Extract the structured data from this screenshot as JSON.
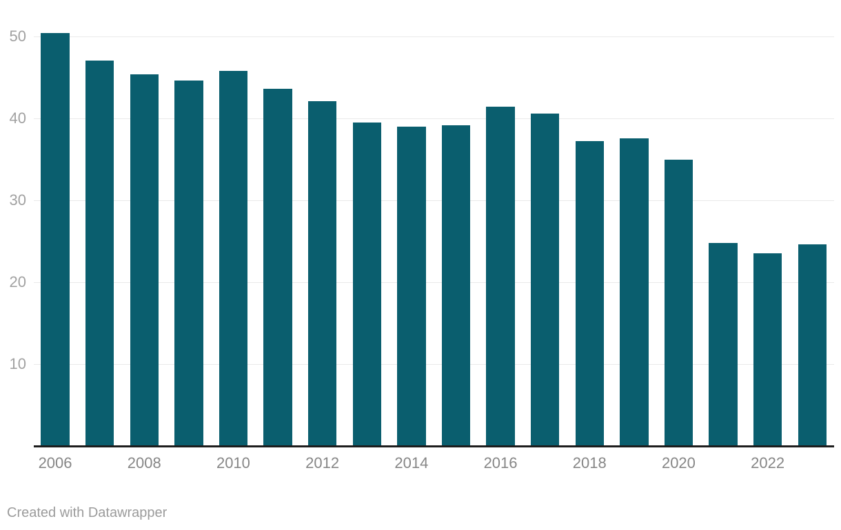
{
  "chart_data": {
    "type": "bar",
    "title": "",
    "xlabel": "",
    "ylabel": "",
    "categories": [
      "2006",
      "2007",
      "2008",
      "2009",
      "2010",
      "2011",
      "2012",
      "2013",
      "2014",
      "2015",
      "2016",
      "2017",
      "2018",
      "2019",
      "2020",
      "2021",
      "2022",
      "2023"
    ],
    "values": [
      50.4,
      47.1,
      45.4,
      44.6,
      45.8,
      43.6,
      42.1,
      39.5,
      39.0,
      39.2,
      41.4,
      40.6,
      37.2,
      37.6,
      35.0,
      24.8,
      23.5,
      24.6
    ],
    "x_tick_labels_shown": [
      "2006",
      "2008",
      "2010",
      "2012",
      "2014",
      "2016",
      "2018",
      "2020",
      "2022"
    ],
    "y_ticks": [
      10,
      20,
      30,
      40,
      50
    ],
    "ylim": [
      0,
      50.5
    ],
    "grid": true,
    "legend": "none",
    "bar_color": "#0a5e6e",
    "gridline_color": "#e9e9e9",
    "axis_line_color": "#1d1d1d",
    "y_tick_label_color": "#a1a1a1",
    "x_tick_label_color": "#868686"
  },
  "footer": {
    "attribution": "Created with Datawrapper"
  }
}
